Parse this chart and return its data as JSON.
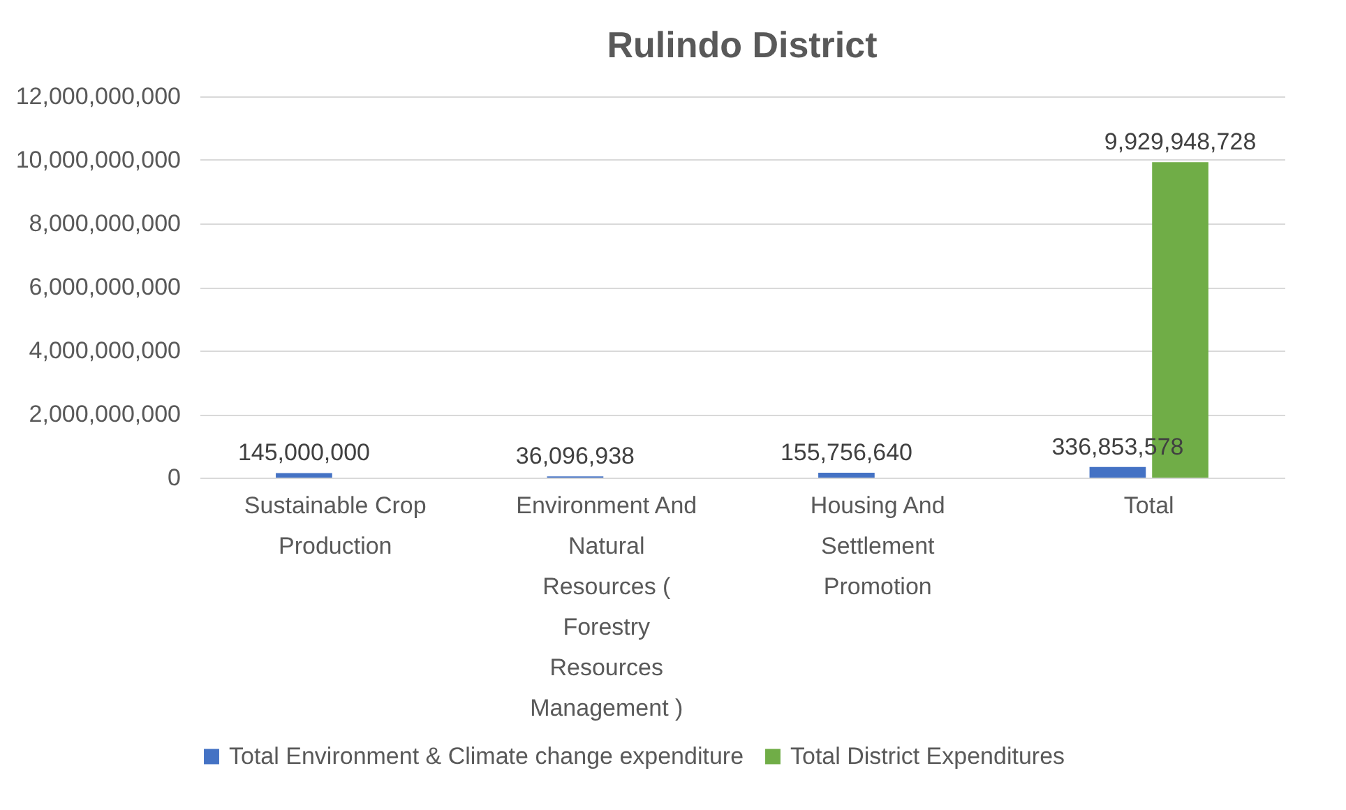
{
  "chart_data": {
    "type": "bar",
    "title": "Rulindo District",
    "categories": [
      "Sustainable Crop Production",
      "Environment And Natural Resources ( Forestry Resources Management )",
      "Housing And Settlement Promotion",
      "Total"
    ],
    "series": [
      {
        "name": "Total Environment & Climate change expenditure",
        "color": "#4472c4",
        "values": [
          145000000,
          36096938,
          155756640,
          336853578
        ],
        "value_labels": [
          "145,000,000",
          "36,096,938",
          "155,756,640",
          "336,853,578"
        ]
      },
      {
        "name": "Total District  Expenditures",
        "color": "#70ad47",
        "values": [
          null,
          null,
          null,
          9929948728
        ],
        "value_labels": [
          null,
          null,
          null,
          "9,929,948,728"
        ]
      }
    ],
    "ylim": [
      0,
      12000000000
    ],
    "yticks": [
      {
        "value": 0,
        "label": "0"
      },
      {
        "value": 2000000000,
        "label": "2,000,000,000"
      },
      {
        "value": 4000000000,
        "label": "4,000,000,000"
      },
      {
        "value": 6000000000,
        "label": "6,000,000,000"
      },
      {
        "value": 8000000000,
        "label": "8,000,000,000"
      },
      {
        "value": 10000000000,
        "label": "10,000,000,000"
      },
      {
        "value": 12000000000,
        "label": "12,000,000,000"
      }
    ],
    "grid": "y",
    "legend": "bottom"
  }
}
